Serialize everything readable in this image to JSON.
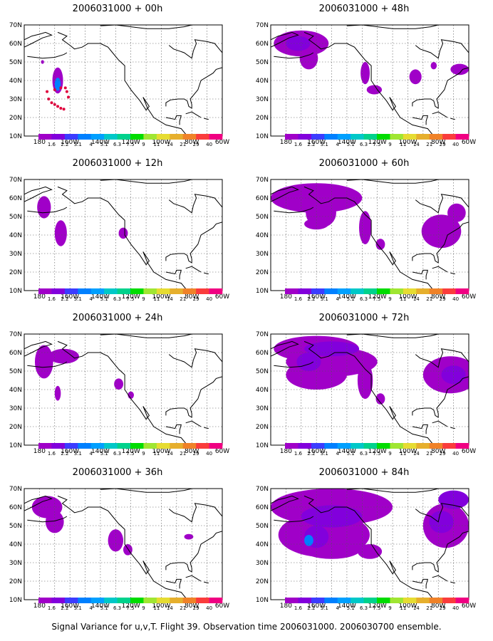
{
  "panels": [
    {
      "title": "2006031000 + 00h"
    },
    {
      "title": "2006031000 + 48h"
    },
    {
      "title": "2006031000 + 12h"
    },
    {
      "title": "2006031000 + 60h"
    },
    {
      "title": "2006031000 + 24h"
    },
    {
      "title": "2006031000 + 72h"
    },
    {
      "title": "2006031000 + 36h"
    },
    {
      "title": "2006031000 + 84h"
    }
  ],
  "lat_labels": [
    "70N",
    "60N",
    "50N",
    "40N",
    "30N",
    "20N",
    "10N"
  ],
  "lon_labels": [
    "180",
    "160W",
    "140W",
    "120W",
    "100W",
    "80W",
    "60W"
  ],
  "colorbar": {
    "levels": [
      "1.6",
      "2.2",
      "3.1",
      "4",
      "5.1",
      "6.3",
      "7.5",
      "9",
      "11",
      "14",
      "21",
      "29",
      "40"
    ],
    "colors": [
      "#a000c8",
      "#8200dc",
      "#3c3cff",
      "#0080ff",
      "#00a0ff",
      "#00c8c8",
      "#00d28c",
      "#00dc00",
      "#a0e632",
      "#e6dc32",
      "#e6af2d",
      "#f08228",
      "#fa3c3c",
      "#f00082"
    ]
  },
  "footer": "Signal Variance for u,v,T. Flight 39. Observation time 2006031000. 2006030700 ensemble."
}
